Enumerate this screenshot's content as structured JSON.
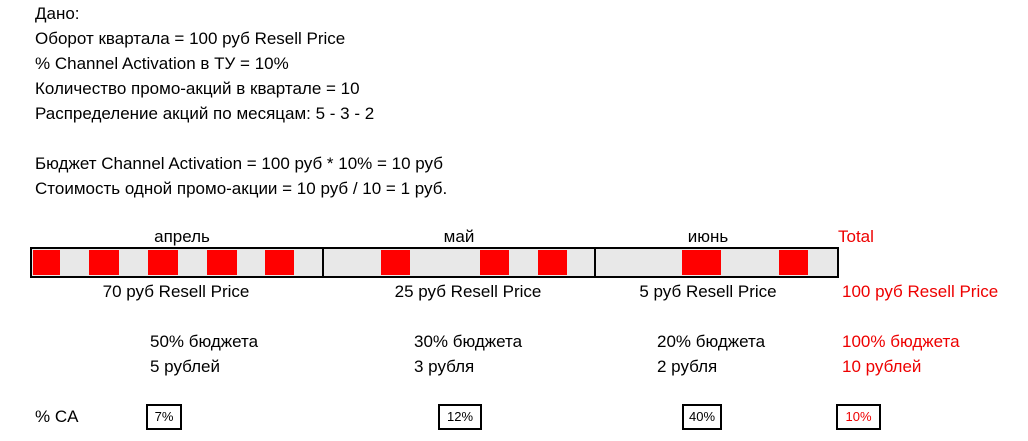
{
  "given": {
    "lines": [
      "Дано:",
      "Оборот квартала = 100 руб Resell Price",
      "% Channel Activation в ТУ = 10%",
      "Количество промо-акций в квартале = 10",
      "Распределение акций по месяцам: 5 - 3 - 2"
    ],
    "calc": [
      "Бюджет Channel Activation = 100 руб * 10% = 10 руб",
      "Стоимость одной промо-акции = 10 руб / 10 = 1 руб."
    ]
  },
  "months": [
    {
      "name": "апрель",
      "resell": "70 руб Resell Price",
      "budget_share": "50% бюджета",
      "budget_amount": "5 рублей",
      "ca": "7%"
    },
    {
      "name": "май",
      "resell": "25 руб Resell Price",
      "budget_share": "30% бюджета",
      "budget_amount": "3 рубля",
      "ca": "12%"
    },
    {
      "name": "июнь",
      "resell": "5 руб Resell Price",
      "budget_share": "20% бюджета",
      "budget_amount": "2 рубля",
      "ca": "40%"
    }
  ],
  "total": {
    "name": "Total",
    "resell": "100 руб Resell Price",
    "budget_share": "100% бюджета",
    "budget_amount": "10 рублей",
    "ca": "10%"
  },
  "ca_label": "% CA"
}
